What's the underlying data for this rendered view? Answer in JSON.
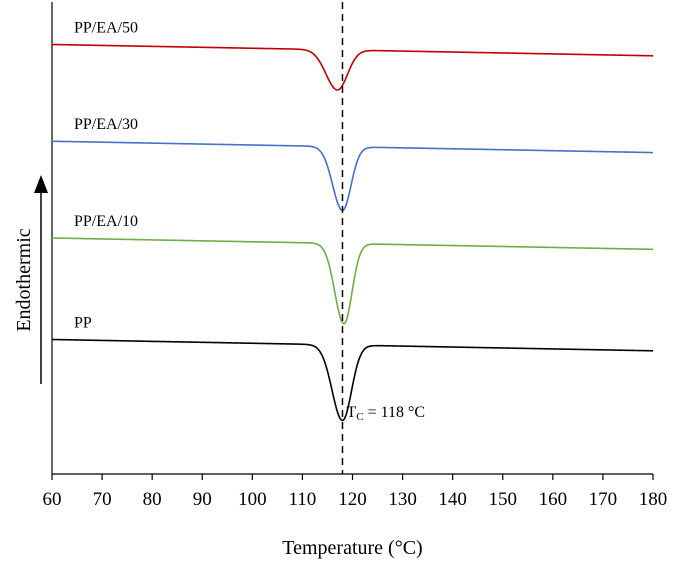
{
  "chart_data": {
    "type": "line",
    "xlabel": "Temperature (°C)",
    "ylabel": "Endothermic",
    "xlim": [
      60,
      180
    ],
    "xticks": [
      60,
      70,
      80,
      90,
      100,
      110,
      120,
      130,
      140,
      150,
      160,
      170,
      180
    ],
    "grid": false,
    "reference_line": {
      "x": 118,
      "style": "dashed"
    },
    "annotation": {
      "prefix": "T",
      "subscript": "C",
      "suffix": " = 118 °C"
    },
    "series": [
      {
        "name": "PP/EA/50",
        "color": "#c00000",
        "baseline": 0.91,
        "slope": -0.0002,
        "peak_x": 117,
        "peak_depth": 0.085,
        "peak_width": 2.0
      },
      {
        "name": "PP/EA/30",
        "color": "#4472c4",
        "baseline": 0.705,
        "slope": -0.0002,
        "peak_x": 118,
        "peak_depth": 0.135,
        "peak_width": 1.7
      },
      {
        "name": "PP/EA/10",
        "color": "#70ad47",
        "baseline": 0.5,
        "slope": -0.0002,
        "peak_x": 118.3,
        "peak_depth": 0.17,
        "peak_width": 1.6
      },
      {
        "name": "PP",
        "color": "#000000",
        "baseline": 0.285,
        "slope": -0.0002,
        "peak_x": 118,
        "peak_depth": 0.16,
        "peak_width": 1.8
      }
    ]
  }
}
